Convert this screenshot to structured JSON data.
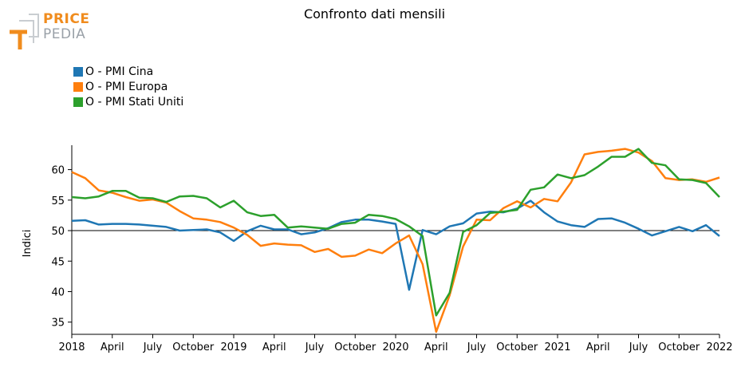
{
  "header": {
    "title": "Confronto dati mensili",
    "logo_text_top": "PRICE",
    "logo_text_bottom": "PEDIA"
  },
  "colors": {
    "cina": "#1f77b4",
    "europa": "#ff7f0e",
    "usa": "#2ca02c",
    "logo_orange": "#f08c1e",
    "logo_gray": "#9aa1a8"
  },
  "chart_data": {
    "type": "line",
    "title": "Confronto dati mensili",
    "xlabel": "",
    "ylabel": "Indici",
    "ylim": [
      33,
      64
    ],
    "yticks": [
      35,
      40,
      45,
      50,
      55,
      60
    ],
    "reference_line": 50,
    "legend_position": "top-left",
    "grid": false,
    "x_start": "2018-01",
    "x_end": "2022-01",
    "x_ticks": [
      {
        "label": "2018",
        "month": 0
      },
      {
        "label": "April",
        "month": 3
      },
      {
        "label": "July",
        "month": 6
      },
      {
        "label": "October",
        "month": 9
      },
      {
        "label": "2019",
        "month": 12
      },
      {
        "label": "April",
        "month": 15
      },
      {
        "label": "July",
        "month": 18
      },
      {
        "label": "October",
        "month": 21
      },
      {
        "label": "2020",
        "month": 24
      },
      {
        "label": "April",
        "month": 27
      },
      {
        "label": "July",
        "month": 30
      },
      {
        "label": "October",
        "month": 33
      },
      {
        "label": "2021",
        "month": 36
      },
      {
        "label": "April",
        "month": 39
      },
      {
        "label": "July",
        "month": 42
      },
      {
        "label": "October",
        "month": 45
      },
      {
        "label": "2022",
        "month": 48
      }
    ],
    "series": [
      {
        "name": "O - PMI Cina",
        "color": "#1f77b4",
        "values": [
          51.6,
          51.7,
          51.0,
          51.1,
          51.1,
          51.0,
          50.8,
          50.6,
          50.0,
          50.1,
          50.2,
          49.7,
          48.3,
          49.9,
          50.8,
          50.2,
          50.2,
          49.4,
          49.7,
          50.4,
          51.4,
          51.8,
          51.8,
          51.5,
          51.1,
          40.3,
          50.1,
          49.4,
          50.7,
          51.2,
          52.8,
          53.1,
          53.0,
          53.6,
          54.9,
          53.0,
          51.5,
          50.9,
          50.6,
          51.9,
          52.0,
          51.3,
          50.3,
          49.2,
          49.9,
          50.6,
          49.9,
          50.9,
          49.1
        ]
      },
      {
        "name": "O - PMI Europa",
        "color": "#ff7f0e",
        "values": [
          59.6,
          58.6,
          56.6,
          56.2,
          55.5,
          54.9,
          55.1,
          54.6,
          53.2,
          52.0,
          51.8,
          51.4,
          50.5,
          49.3,
          47.5,
          47.9,
          47.7,
          47.6,
          46.5,
          47.0,
          45.7,
          45.9,
          46.9,
          46.3,
          47.9,
          49.2,
          44.5,
          33.4,
          39.4,
          47.4,
          51.8,
          51.7,
          53.7,
          54.8,
          53.8,
          55.2,
          54.8,
          57.9,
          62.5,
          62.9,
          63.1,
          63.4,
          62.8,
          61.4,
          58.6,
          58.3,
          58.4,
          58.0,
          58.7
        ]
      },
      {
        "name": "O - PMI Stati Uniti",
        "color": "#2ca02c",
        "values": [
          55.5,
          55.3,
          55.6,
          56.5,
          56.5,
          55.4,
          55.3,
          54.7,
          55.6,
          55.7,
          55.3,
          53.8,
          54.9,
          53.0,
          52.4,
          52.6,
          50.5,
          50.7,
          50.5,
          50.3,
          51.1,
          51.3,
          52.6,
          52.4,
          51.9,
          50.7,
          49.1,
          36.1,
          39.8,
          49.8,
          50.9,
          52.9,
          53.1,
          53.4,
          56.7,
          57.1,
          59.2,
          58.6,
          59.1,
          60.5,
          62.1,
          62.1,
          63.4,
          61.1,
          60.7,
          58.4,
          58.3,
          57.8,
          55.5
        ]
      }
    ]
  }
}
